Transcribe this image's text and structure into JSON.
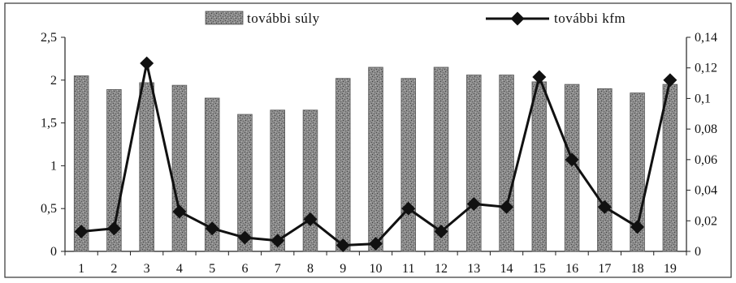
{
  "chart_data": {
    "type": "bar+line",
    "title": "",
    "xlabel": "",
    "ylabel": "",
    "categories": [
      "1",
      "2",
      "3",
      "4",
      "5",
      "6",
      "7",
      "8",
      "9",
      "10",
      "11",
      "12",
      "13",
      "14",
      "15",
      "16",
      "17",
      "18",
      "19"
    ],
    "series": [
      {
        "name": "további súly",
        "type": "bar",
        "axis": "left",
        "values": [
          2.05,
          1.89,
          1.97,
          1.94,
          1.79,
          1.6,
          1.65,
          1.65,
          2.02,
          2.15,
          2.02,
          2.15,
          2.06,
          2.06,
          1.98,
          1.95,
          1.9,
          1.85,
          1.95
        ]
      },
      {
        "name": "további kfm",
        "type": "line",
        "axis": "right",
        "values": [
          0.013,
          0.015,
          0.123,
          0.026,
          0.015,
          0.009,
          0.007,
          0.021,
          0.004,
          0.005,
          0.028,
          0.013,
          0.031,
          0.029,
          0.114,
          0.06,
          0.029,
          0.016,
          0.112
        ]
      }
    ],
    "y_left": {
      "range": [
        0,
        2.5
      ],
      "ticks": [
        "0",
        "0,5",
        "1",
        "1,5",
        "2",
        "2,5"
      ],
      "tick_values": [
        0,
        0.5,
        1,
        1.5,
        2,
        2.5
      ]
    },
    "y_right": {
      "range": [
        0,
        0.14
      ],
      "ticks": [
        "0",
        "0,02",
        "0,04",
        "0,06",
        "0,08",
        "0,1",
        "0,12",
        "0,14"
      ],
      "tick_values": [
        0,
        0.02,
        0.04,
        0.06,
        0.08,
        0.1,
        0.12,
        0.14
      ]
    },
    "grid": false,
    "legend_position": "top",
    "colors": {
      "bar_fill": "#8a8a8a",
      "bar_speckle": "#4a4a4a",
      "line": "#111111",
      "marker": "#111111",
      "axis": "#222222"
    }
  }
}
